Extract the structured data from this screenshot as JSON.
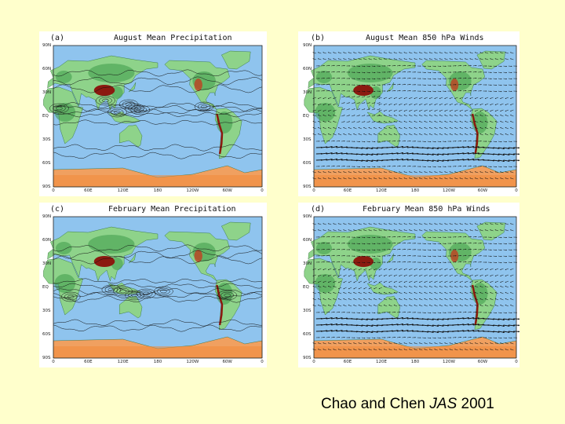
{
  "citation": {
    "prefix": "Chao and Chen ",
    "journal": "JAS",
    "year": " 2001"
  },
  "panels": {
    "a": {
      "letter": "(a)",
      "title": "August Mean Precipitation",
      "lat_labels": [
        "90N",
        "60N",
        "30N",
        "EQ",
        "30S",
        "60S",
        "90S"
      ],
      "lon_labels": [
        "0",
        "60E",
        "120E",
        "180",
        "120W",
        "60W",
        "0"
      ]
    },
    "b": {
      "letter": "(b)",
      "title": "August Mean 850 hPa Winds",
      "lat_labels": [
        "90N",
        "60N",
        "30N",
        "EQ",
        "30S",
        "60S",
        "90S"
      ],
      "lon_labels": [
        "0",
        "60E",
        "120E",
        "180",
        "120W",
        "60W",
        "0"
      ]
    },
    "c": {
      "letter": "(c)",
      "title": "February Mean Precipitation",
      "lat_labels": [
        "90N",
        "60N",
        "30N",
        "EQ",
        "30S",
        "60S",
        "90S"
      ],
      "lon_labels": [
        "0",
        "60E",
        "120E",
        "180",
        "120W",
        "60W",
        "0"
      ]
    },
    "d": {
      "letter": "(d)",
      "title": "February Mean 850 hPa Winds",
      "lat_labels": [
        "90N",
        "60N",
        "30N",
        "EQ",
        "30S",
        "60S",
        "90S"
      ],
      "lon_labels": [
        "0",
        "60E",
        "120E",
        "180",
        "120W",
        "60W",
        "0"
      ]
    }
  },
  "colors": {
    "ocean": "#8fc4ee",
    "land": "#8ed38a",
    "land_dark": "#3d9a48",
    "highland": "#8b1a10",
    "antarctica": "#f0a060",
    "contour": "#111111",
    "slide_bg": "#ffffcc"
  },
  "map_layers": {
    "precipitation": "contours",
    "winds": "arrows"
  }
}
